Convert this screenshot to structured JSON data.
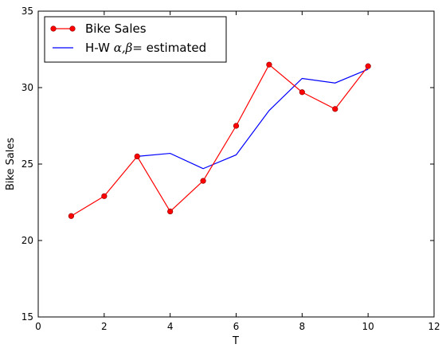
{
  "chart_data": {
    "type": "line",
    "title": "",
    "xlabel": "T",
    "ylabel": "Bike Sales",
    "xlim": [
      0,
      12
    ],
    "ylim": [
      15,
      35
    ],
    "xticks": [
      0,
      2,
      4,
      6,
      8,
      10,
      12
    ],
    "yticks": [
      15,
      20,
      25,
      30,
      35
    ],
    "grid": false,
    "legend_position": "top-left",
    "series": [
      {
        "name": "Bike Sales",
        "color": "#ff0000",
        "marker": "circle",
        "x": [
          1,
          2,
          3,
          4,
          5,
          6,
          7,
          8,
          9,
          10
        ],
        "y": [
          21.6,
          22.9,
          25.5,
          21.9,
          23.9,
          27.5,
          31.5,
          29.7,
          28.6,
          31.4
        ]
      },
      {
        "name_prefix": "H-W ",
        "name_math": "α,β=",
        "name_suffix": " estimated",
        "color": "#0000ff",
        "marker": "none",
        "x": [
          3,
          4,
          5,
          6,
          7,
          8,
          9,
          10
        ],
        "y": [
          25.5,
          25.7,
          24.7,
          25.6,
          28.5,
          30.6,
          30.3,
          31.2
        ]
      }
    ]
  }
}
